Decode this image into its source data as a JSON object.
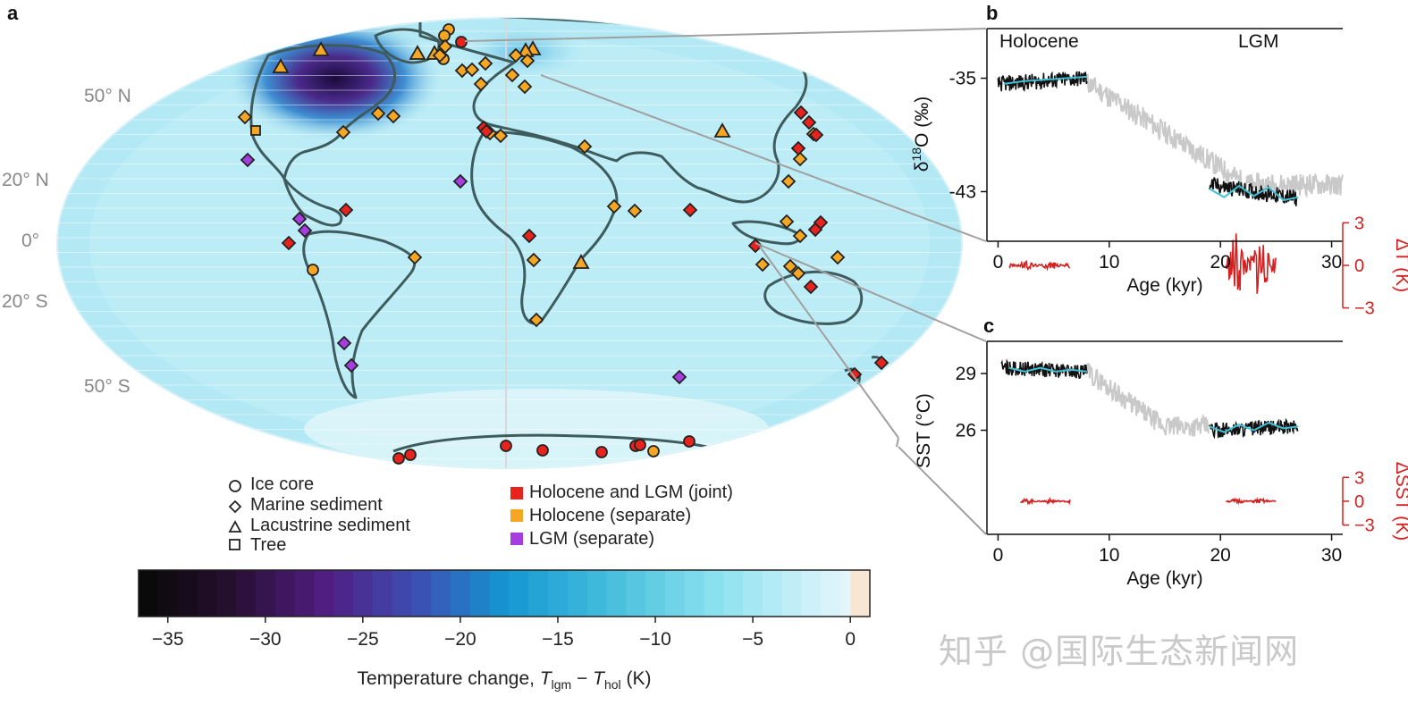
{
  "panels": {
    "a": "a",
    "b": "b",
    "c": "c"
  },
  "map": {
    "lat_labels": [
      "50° N",
      "20° N",
      "0°",
      "20° S",
      "50° S"
    ],
    "proxy_legend": [
      {
        "name": "ice-core",
        "symbol": "circle",
        "label": "Ice core"
      },
      {
        "name": "marine-sediment",
        "symbol": "diamond",
        "label": "Marine sediment"
      },
      {
        "name": "lacustrine-sediment",
        "symbol": "triangle",
        "label": "Lacustrine sediment"
      },
      {
        "name": "tree",
        "symbol": "square",
        "label": "Tree"
      }
    ],
    "period_legend": [
      {
        "name": "joint",
        "color": "#e8231e",
        "label": "Holocene and LGM (joint)"
      },
      {
        "name": "holocene",
        "color": "#f5a623",
        "label": "Holocene (separate)"
      },
      {
        "name": "lgm",
        "color": "#a63de0",
        "label": "LGM (separate)"
      }
    ]
  },
  "colorbar": {
    "ticks": [
      "−35",
      "−30",
      "−25",
      "−20",
      "−15",
      "−10",
      "−5",
      "0"
    ],
    "label_prefix": "Temperature change, ",
    "label_T": "T",
    "label_sub1": "lgm",
    "label_minus": " − ",
    "label_sub2": "hol",
    "label_suffix": " (K)"
  },
  "chart_data": [
    {
      "id": "b",
      "type": "line",
      "ylabel": "δ18O (‰)",
      "ylabel_base": "δ",
      "ylabel_sup": "18",
      "ylabel_rest": "O (‰)",
      "y2label": "ΔT (K)",
      "xlabel": "Age (kyr)",
      "period_labels": [
        "Holocene",
        "LGM"
      ],
      "xlim": [
        -1,
        31
      ],
      "ylim": [
        -46.5,
        -31.5
      ],
      "x_ticks": [
        0,
        10,
        20,
        30
      ],
      "y_ticks": [
        -35,
        -43
      ],
      "y2_ticks": [
        "3",
        "0",
        "−3"
      ],
      "y2_values": [
        3,
        0,
        -3
      ],
      "y2_center": -48.2,
      "y2_scale": 1.0,
      "grey_record": {
        "x_range": [
          8,
          31
        ],
        "y_start": -35.3,
        "y_end": -42.5
      },
      "black_segments": [
        {
          "x_range": [
            0,
            8
          ],
          "y_start": -35.4,
          "y_end": -35.0
        },
        {
          "x_range": [
            19,
            27
          ],
          "y_start": -42.5,
          "y_end": -43.5
        }
      ],
      "smooth_segments": [
        {
          "x_range": [
            0.5,
            8
          ],
          "y_points": [
            -35.4,
            -35.2,
            -35.1,
            -35.0,
            -34.9
          ]
        },
        {
          "x_range": [
            19,
            27
          ],
          "y_points": [
            -42.8,
            -43.4,
            -42.6,
            -43.3,
            -42.7,
            -43.6,
            -43.4
          ]
        }
      ],
      "residuals": [
        {
          "x_range": [
            1,
            6.5
          ],
          "amplitude": 0.3
        },
        {
          "x_range": [
            20.5,
            25
          ],
          "amplitude": 2.5
        }
      ]
    },
    {
      "id": "c",
      "type": "line",
      "ylabel": "SST (°C)",
      "y2label": "ΔSST (K)",
      "xlabel": "Age (kyr)",
      "xlim": [
        -1,
        31
      ],
      "ylim": [
        20.5,
        30.7
      ],
      "x_ticks": [
        0,
        10,
        20,
        30
      ],
      "y_ticks": [
        29,
        26
      ],
      "y2_ticks": [
        "3",
        "0",
        "−3"
      ],
      "y2_values": [
        3,
        0,
        -3
      ],
      "y2_center": 22.25,
      "y2_scale": 0.42,
      "grey_record": {
        "x_range": [
          8,
          19
        ],
        "y_start": 29.1,
        "y_end": 26.2
      },
      "black_segments": [
        {
          "x_range": [
            0.3,
            8
          ],
          "y_start": 29.3,
          "y_end": 29.1
        },
        {
          "x_range": [
            19,
            27
          ],
          "y_start": 26.0,
          "y_end": 26.2
        }
      ],
      "smooth_segments": [
        {
          "x_range": [
            1,
            8
          ],
          "y_points": [
            29.3,
            29.1,
            29.3,
            29.1,
            29.2,
            29.1
          ]
        },
        {
          "x_range": [
            19,
            27
          ],
          "y_points": [
            26.2,
            25.9,
            26.3,
            26.0,
            26.4,
            26.1,
            26.2
          ]
        }
      ],
      "residuals": [
        {
          "x_range": [
            2,
            6.5
          ],
          "amplitude": 0.3
        },
        {
          "x_range": [
            20.5,
            25
          ],
          "amplitude": 0.3
        }
      ]
    }
  ],
  "watermark": "知乎 @国际生态新闻网"
}
